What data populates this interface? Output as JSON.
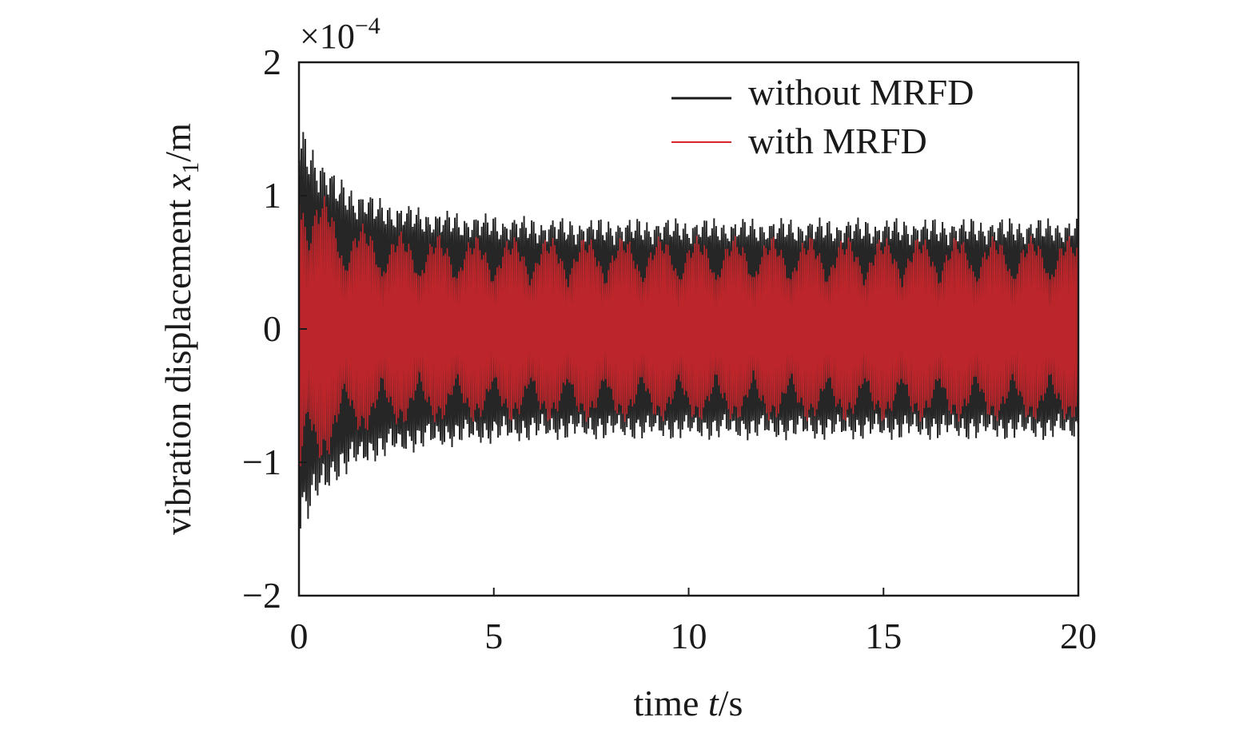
{
  "chart_data": {
    "type": "line",
    "xlabel_prefix": "time ",
    "xlabel_var": "t",
    "xlabel_suffix": "/s",
    "ylabel_prefix": "vibration displacement ",
    "ylabel_var": "x",
    "ylabel_sub": "1",
    "ylabel_suffix": "/m",
    "y_multiplier": "×10",
    "y_multiplier_exp": "−4",
    "xlim": [
      0,
      20
    ],
    "ylim": [
      -2,
      2
    ],
    "x_ticks": [
      "0",
      "5",
      "10",
      "15",
      "20"
    ],
    "x_tick_values": [
      0,
      5,
      10,
      15,
      20
    ],
    "y_ticks": [
      "2",
      "1",
      "0",
      "−1",
      "−2"
    ],
    "y_tick_values": [
      2,
      1,
      0,
      -1,
      -2
    ],
    "grid": false,
    "legend_position": "top-right",
    "envelope_times": [
      0,
      1,
      2,
      3,
      4,
      5,
      6,
      7,
      8,
      9,
      10,
      11,
      12,
      13,
      14,
      15,
      16,
      17,
      18,
      19,
      20
    ],
    "series": [
      {
        "name": "without MRFD",
        "color": "#1a1a1a",
        "peak_amplitude": [
          1.55,
          1.15,
          1.0,
          0.93,
          0.89,
          0.87,
          0.85,
          0.84,
          0.84,
          0.84,
          0.84,
          0.84,
          0.84,
          0.84,
          0.84,
          0.84,
          0.84,
          0.84,
          0.84,
          0.84,
          0.84
        ]
      },
      {
        "name": "with MRFD",
        "color": "#d7262b",
        "peak_amplitude": [
          1.3,
          0.85,
          0.76,
          0.72,
          0.71,
          0.7,
          0.7,
          0.7,
          0.7,
          0.7,
          0.7,
          0.7,
          0.7,
          0.7,
          0.7,
          0.7,
          0.7,
          0.7,
          0.7,
          0.7,
          0.7
        ]
      }
    ]
  }
}
